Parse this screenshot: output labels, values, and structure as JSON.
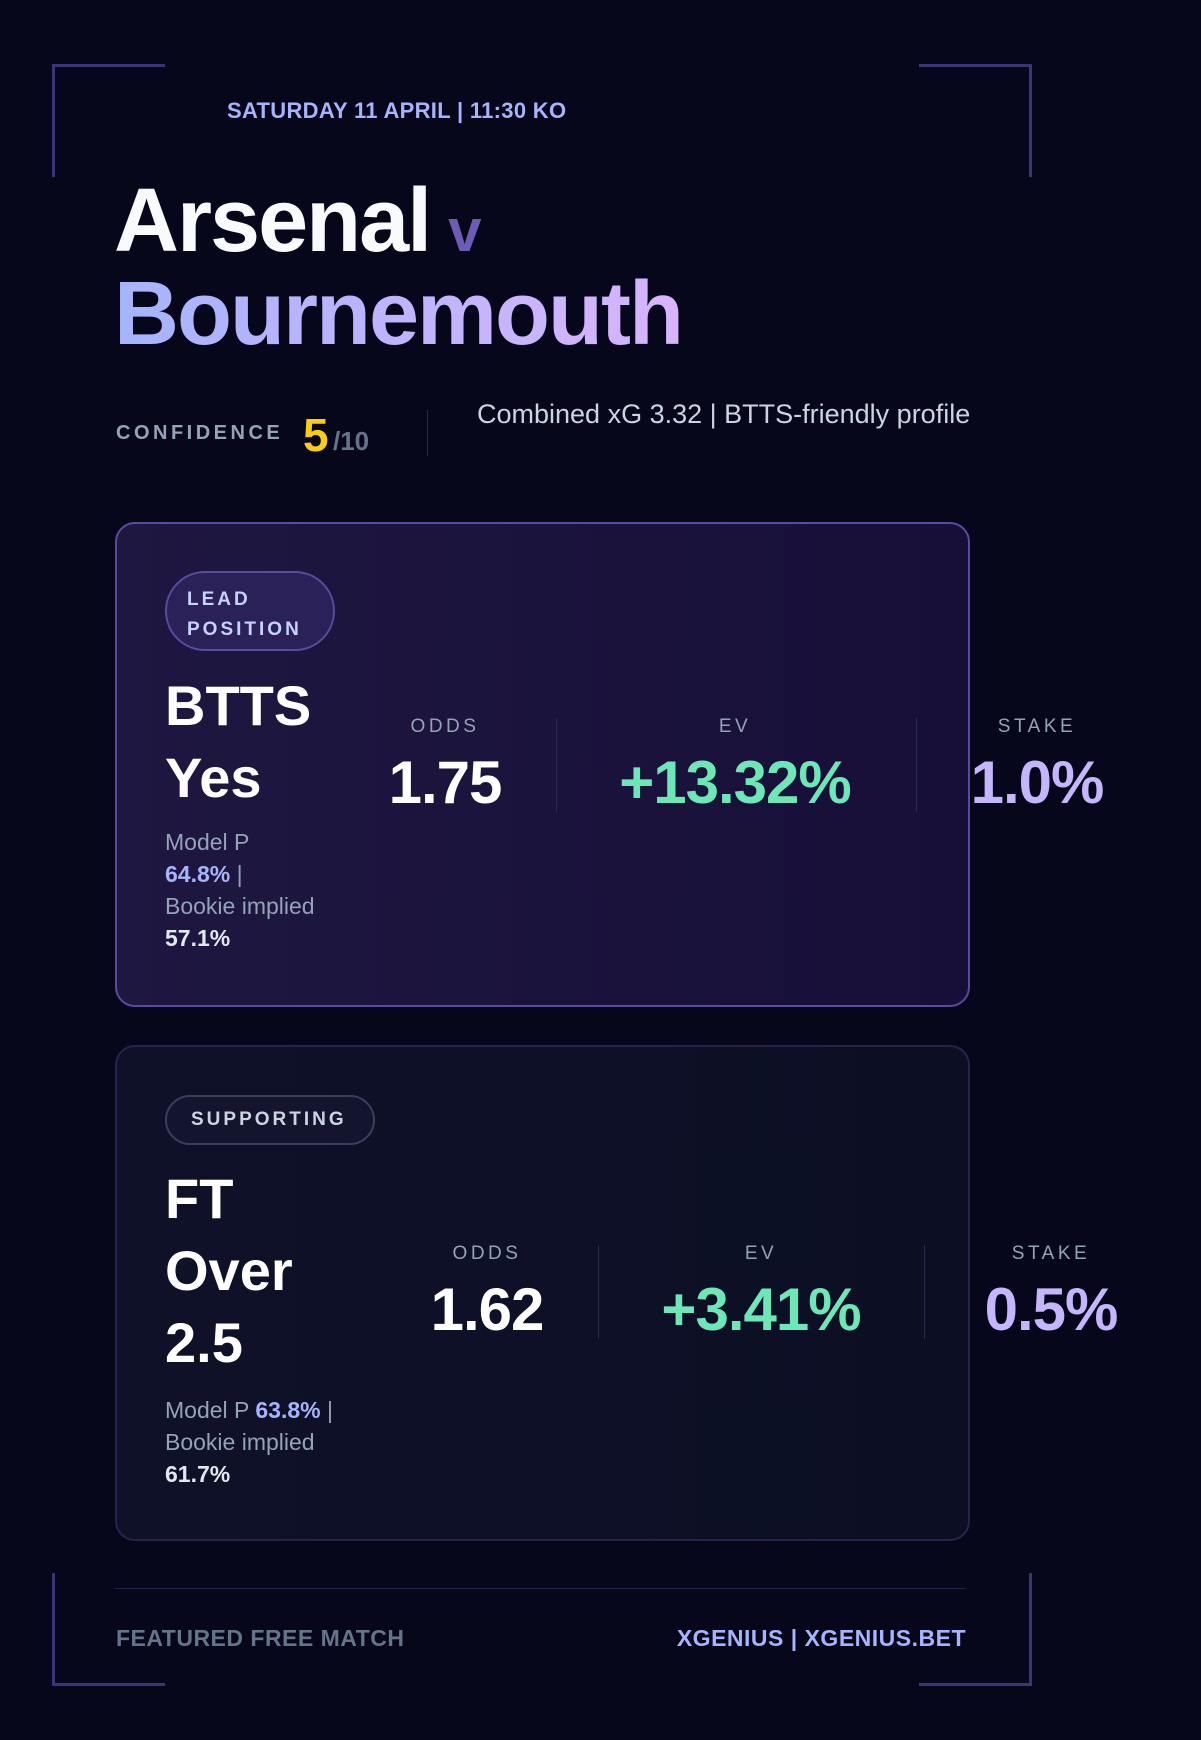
{
  "header": {
    "date": "SATURDAY 11 APRIL | 11:30 KO",
    "home": "Arsenal",
    "vs": "v",
    "away": "Bournemouth"
  },
  "confidence": {
    "label": "CONFIDENCE",
    "score": "5",
    "scale": "/10",
    "note": "Combined xG 3.32 | BTTS-friendly profile"
  },
  "bets": [
    {
      "tag": "LEAD POSITION",
      "market": "BTTS Yes",
      "model_label": "Model P",
      "model_p": "64.8%",
      "separator": "|",
      "bookie_label": "Bookie implied",
      "bookie_p": "57.1%",
      "odds_label": "ODDS",
      "odds": "1.75",
      "ev_label": "EV",
      "ev": "+13.32%",
      "stake_label": "STAKE",
      "stake": "1.0%"
    },
    {
      "tag": "SUPPORTING",
      "market": "FT Over 2.5",
      "model_label": "Model P",
      "model_p": "63.8%",
      "separator": "|",
      "bookie_label": "Bookie implied",
      "bookie_p": "61.7%",
      "odds_label": "ODDS",
      "odds": "1.62",
      "ev_label": "EV",
      "ev": "+3.41%",
      "stake_label": "STAKE",
      "stake": "0.5%"
    }
  ],
  "footer": {
    "left": "FEATURED FREE MATCH",
    "right": "XGENIUS | XGENIUS.BET"
  }
}
